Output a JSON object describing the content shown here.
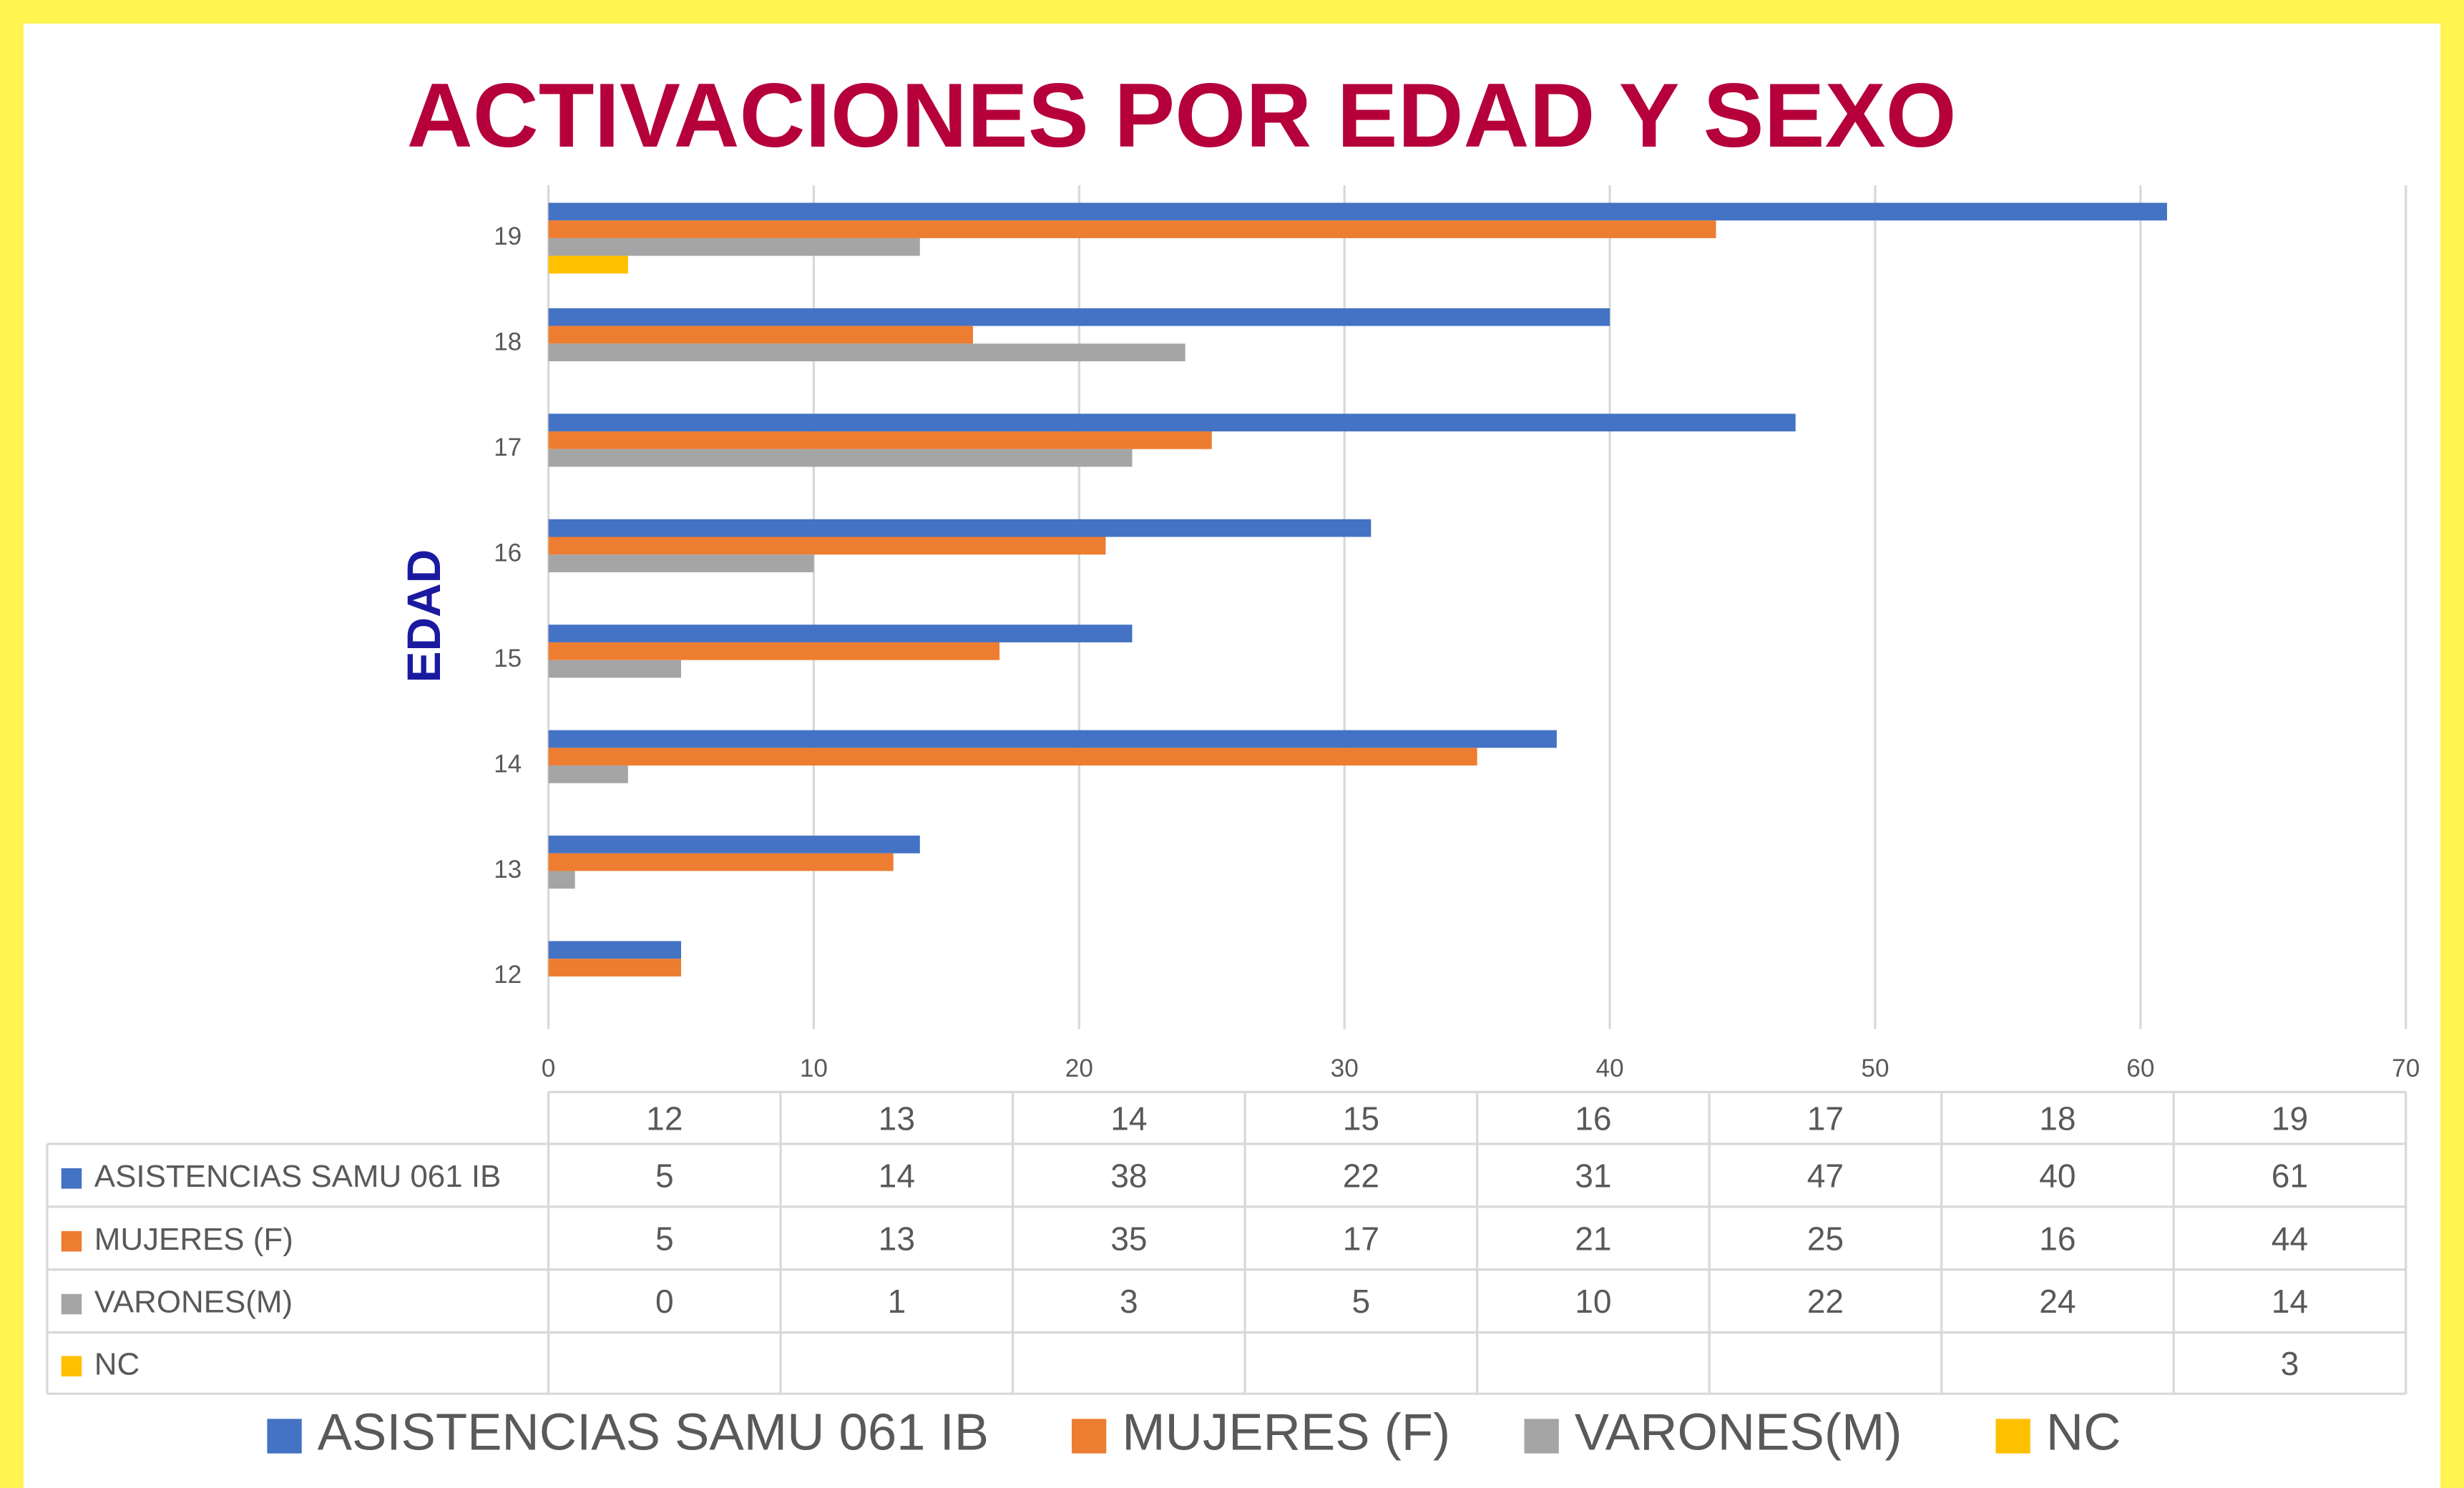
{
  "chart_data": {
    "type": "barh",
    "title": "ACTIVACIONES POR EDAD Y SEXO",
    "y_label": "EDAD",
    "categories": [
      "12",
      "13",
      "14",
      "15",
      "16",
      "17",
      "18",
      "19"
    ],
    "series": [
      {
        "name": "ASISTENCIAS SAMU 061 IB",
        "color": "#4472c4",
        "values": [
          5,
          14,
          38,
          22,
          31,
          47,
          40,
          61
        ]
      },
      {
        "name": "MUJERES (F)",
        "color": "#ed7d31",
        "values": [
          5,
          13,
          35,
          17,
          21,
          25,
          16,
          44
        ]
      },
      {
        "name": "VARONES(M)",
        "color": "#a5a5a5",
        "values": [
          0,
          1,
          3,
          5,
          10,
          22,
          24,
          14
        ]
      },
      {
        "name": "NC",
        "color": "#ffc000",
        "values": [
          null,
          null,
          null,
          null,
          null,
          null,
          null,
          3
        ]
      }
    ],
    "xlim": [
      0,
      70
    ],
    "xticks": [
      0,
      10,
      20,
      30,
      40,
      50,
      60,
      70
    ],
    "grid": true,
    "data_table": true,
    "legend": "bottom"
  }
}
